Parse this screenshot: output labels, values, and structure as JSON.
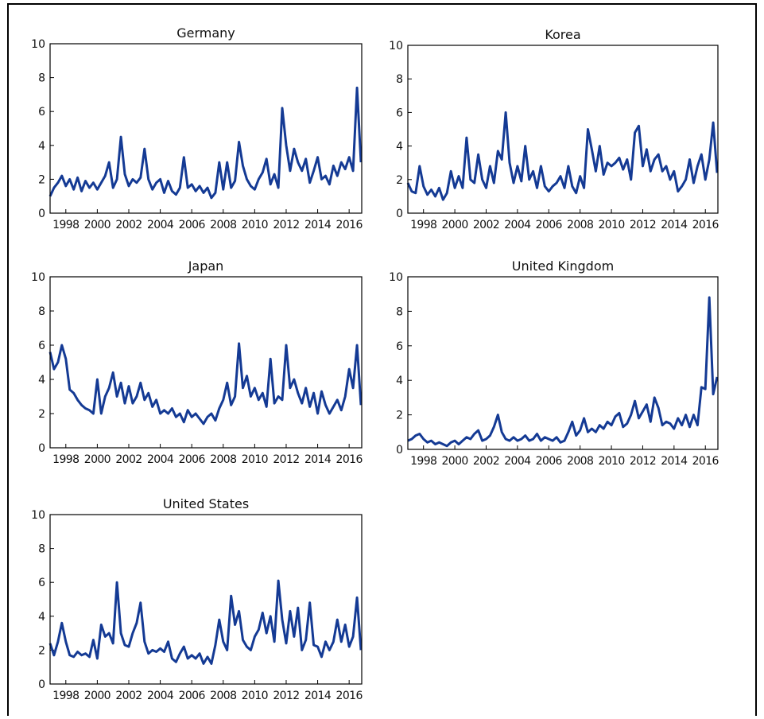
{
  "chart_data": [
    {
      "type": "line",
      "title": "Germany",
      "color": "#143a94",
      "xlim": [
        1997,
        2016.8
      ],
      "ylim": [
        0,
        10
      ],
      "xticks": [
        1998,
        2000,
        2002,
        2004,
        2006,
        2008,
        2010,
        2012,
        2014,
        2016
      ],
      "yticks": [
        0,
        2,
        4,
        6,
        8,
        10
      ],
      "x": [
        1997,
        1997.25,
        1997.5,
        1997.75,
        1998,
        1998.25,
        1998.5,
        1998.75,
        1999,
        1999.25,
        1999.5,
        1999.75,
        2000,
        2000.25,
        2000.5,
        2000.75,
        2001,
        2001.25,
        2001.5,
        2001.75,
        2002,
        2002.25,
        2002.5,
        2002.75,
        2003,
        2003.25,
        2003.5,
        2003.75,
        2004,
        2004.25,
        2004.5,
        2004.75,
        2005,
        2005.25,
        2005.5,
        2005.75,
        2006,
        2006.25,
        2006.5,
        2006.75,
        2007,
        2007.25,
        2007.5,
        2007.75,
        2008,
        2008.25,
        2008.5,
        2008.75,
        2009,
        2009.25,
        2009.5,
        2009.75,
        2010,
        2010.25,
        2010.5,
        2010.75,
        2011,
        2011.25,
        2011.5,
        2011.75,
        2012,
        2012.25,
        2012.5,
        2012.75,
        2013,
        2013.25,
        2013.5,
        2013.75,
        2014,
        2014.25,
        2014.5,
        2014.75,
        2015,
        2015.25,
        2015.5,
        2015.75,
        2016,
        2016.25,
        2016.5,
        2016.75
      ],
      "values": [
        1.0,
        1.5,
        1.8,
        2.2,
        1.6,
        2.0,
        1.4,
        2.1,
        1.3,
        1.9,
        1.5,
        1.8,
        1.4,
        1.8,
        2.2,
        3.0,
        1.5,
        2.0,
        4.5,
        2.3,
        1.6,
        2.0,
        1.8,
        2.1,
        3.8,
        2.0,
        1.4,
        1.8,
        2.0,
        1.2,
        1.9,
        1.3,
        1.1,
        1.5,
        3.3,
        1.5,
        1.7,
        1.3,
        1.6,
        1.2,
        1.5,
        0.9,
        1.2,
        3.0,
        1.4,
        3.0,
        1.5,
        1.9,
        4.2,
        2.8,
        2.0,
        1.6,
        1.4,
        2.0,
        2.4,
        3.2,
        1.7,
        2.3,
        1.5,
        6.2,
        4.0,
        2.5,
        3.8,
        3.0,
        2.5,
        3.2,
        1.8,
        2.5,
        3.3,
        2.0,
        2.2,
        1.7,
        2.8,
        2.2,
        3.0,
        2.6,
        3.3,
        2.5,
        7.4,
        3.0
      ]
    },
    {
      "type": "line",
      "title": "Korea",
      "color": "#143a94",
      "xlim": [
        1997,
        2016.8
      ],
      "ylim": [
        0,
        10
      ],
      "xticks": [
        1998,
        2000,
        2002,
        2004,
        2006,
        2008,
        2010,
        2012,
        2014,
        2016
      ],
      "yticks": [
        0,
        2,
        4,
        6,
        8,
        10
      ],
      "x": [
        1997,
        1997.25,
        1997.5,
        1997.75,
        1998,
        1998.25,
        1998.5,
        1998.75,
        1999,
        1999.25,
        1999.5,
        1999.75,
        2000,
        2000.25,
        2000.5,
        2000.75,
        2001,
        2001.25,
        2001.5,
        2001.75,
        2002,
        2002.25,
        2002.5,
        2002.75,
        2003,
        2003.25,
        2003.5,
        2003.75,
        2004,
        2004.25,
        2004.5,
        2004.75,
        2005,
        2005.25,
        2005.5,
        2005.75,
        2006,
        2006.25,
        2006.5,
        2006.75,
        2007,
        2007.25,
        2007.5,
        2007.75,
        2008,
        2008.25,
        2008.5,
        2008.75,
        2009,
        2009.25,
        2009.5,
        2009.75,
        2010,
        2010.25,
        2010.5,
        2010.75,
        2011,
        2011.25,
        2011.5,
        2011.75,
        2012,
        2012.25,
        2012.5,
        2012.75,
        2013,
        2013.25,
        2013.5,
        2013.75,
        2014,
        2014.25,
        2014.5,
        2014.75,
        2015,
        2015.25,
        2015.5,
        2015.75,
        2016,
        2016.25,
        2016.5,
        2016.75
      ],
      "values": [
        1.8,
        1.3,
        1.2,
        2.8,
        1.6,
        1.1,
        1.4,
        1.0,
        1.5,
        0.8,
        1.2,
        2.5,
        1.5,
        2.2,
        1.5,
        4.5,
        2.0,
        1.8,
        3.5,
        2.0,
        1.5,
        2.8,
        1.8,
        3.7,
        3.2,
        6.0,
        3.0,
        1.8,
        2.8,
        1.9,
        4.0,
        2.0,
        2.5,
        1.5,
        2.8,
        1.6,
        1.3,
        1.6,
        1.8,
        2.2,
        1.5,
        2.8,
        1.6,
        1.2,
        2.2,
        1.5,
        5.0,
        3.8,
        2.5,
        4.0,
        2.3,
        3.0,
        2.8,
        3.0,
        3.3,
        2.6,
        3.2,
        2.0,
        4.8,
        5.2,
        2.8,
        3.8,
        2.5,
        3.2,
        3.5,
        2.5,
        2.8,
        2.0,
        2.5,
        1.3,
        1.6,
        2.0,
        3.2,
        1.8,
        2.8,
        3.5,
        2.0,
        3.2,
        5.4,
        2.4
      ]
    },
    {
      "type": "line",
      "title": "Japan",
      "color": "#143a94",
      "xlim": [
        1997,
        2016.8
      ],
      "ylim": [
        0,
        10
      ],
      "xticks": [
        1998,
        2000,
        2002,
        2004,
        2006,
        2008,
        2010,
        2012,
        2014,
        2016
      ],
      "yticks": [
        0,
        2,
        4,
        6,
        8,
        10
      ],
      "x": [
        1997,
        1997.25,
        1997.5,
        1997.75,
        1998,
        1998.25,
        1998.5,
        1998.75,
        1999,
        1999.25,
        1999.5,
        1999.75,
        2000,
        2000.25,
        2000.5,
        2000.75,
        2001,
        2001.25,
        2001.5,
        2001.75,
        2002,
        2002.25,
        2002.5,
        2002.75,
        2003,
        2003.25,
        2003.5,
        2003.75,
        2004,
        2004.25,
        2004.5,
        2004.75,
        2005,
        2005.25,
        2005.5,
        2005.75,
        2006,
        2006.25,
        2006.5,
        2006.75,
        2007,
        2007.25,
        2007.5,
        2007.75,
        2008,
        2008.25,
        2008.5,
        2008.75,
        2009,
        2009.25,
        2009.5,
        2009.75,
        2010,
        2010.25,
        2010.5,
        2010.75,
        2011,
        2011.25,
        2011.5,
        2011.75,
        2012,
        2012.25,
        2012.5,
        2012.75,
        2013,
        2013.25,
        2013.5,
        2013.75,
        2014,
        2014.25,
        2014.5,
        2014.75,
        2015,
        2015.25,
        2015.5,
        2015.75,
        2016,
        2016.25,
        2016.5,
        2016.75
      ],
      "values": [
        5.6,
        4.6,
        5.0,
        6.0,
        5.2,
        3.4,
        3.2,
        2.8,
        2.5,
        2.3,
        2.2,
        2.0,
        4.0,
        2.0,
        3.0,
        3.5,
        4.4,
        3.0,
        3.8,
        2.6,
        3.6,
        2.6,
        3.0,
        3.8,
        2.8,
        3.2,
        2.4,
        2.8,
        2.0,
        2.2,
        2.0,
        2.3,
        1.8,
        2.0,
        1.5,
        2.2,
        1.8,
        2.0,
        1.7,
        1.4,
        1.8,
        2.0,
        1.6,
        2.3,
        2.8,
        3.8,
        2.5,
        3.0,
        6.1,
        3.5,
        4.2,
        3.0,
        3.5,
        2.8,
        3.2,
        2.4,
        5.2,
        2.6,
        3.0,
        2.8,
        6.0,
        3.5,
        4.0,
        3.2,
        2.6,
        3.5,
        2.4,
        3.2,
        2.0,
        3.3,
        2.5,
        2.0,
        2.4,
        2.8,
        2.2,
        3.0,
        4.6,
        3.5,
        6.0,
        2.5
      ]
    },
    {
      "type": "line",
      "title": "United Kingdom",
      "color": "#143a94",
      "xlim": [
        1997,
        2016.8
      ],
      "ylim": [
        0,
        10
      ],
      "xticks": [
        1998,
        2000,
        2002,
        2004,
        2006,
        2008,
        2010,
        2012,
        2014,
        2016
      ],
      "yticks": [
        0,
        2,
        4,
        6,
        8,
        10
      ],
      "x": [
        1997,
        1997.25,
        1997.5,
        1997.75,
        1998,
        1998.25,
        1998.5,
        1998.75,
        1999,
        1999.25,
        1999.5,
        1999.75,
        2000,
        2000.25,
        2000.5,
        2000.75,
        2001,
        2001.25,
        2001.5,
        2001.75,
        2002,
        2002.25,
        2002.5,
        2002.75,
        2003,
        2003.25,
        2003.5,
        2003.75,
        2004,
        2004.25,
        2004.5,
        2004.75,
        2005,
        2005.25,
        2005.5,
        2005.75,
        2006,
        2006.25,
        2006.5,
        2006.75,
        2007,
        2007.25,
        2007.5,
        2007.75,
        2008,
        2008.25,
        2008.5,
        2008.75,
        2009,
        2009.25,
        2009.5,
        2009.75,
        2010,
        2010.25,
        2010.5,
        2010.75,
        2011,
        2011.25,
        2011.5,
        2011.75,
        2012,
        2012.25,
        2012.5,
        2012.75,
        2013,
        2013.25,
        2013.5,
        2013.75,
        2014,
        2014.25,
        2014.5,
        2014.75,
        2015,
        2015.25,
        2015.5,
        2015.75,
        2016,
        2016.25,
        2016.5,
        2016.75
      ],
      "values": [
        0.5,
        0.6,
        0.8,
        0.9,
        0.6,
        0.4,
        0.5,
        0.3,
        0.4,
        0.3,
        0.2,
        0.4,
        0.5,
        0.3,
        0.5,
        0.7,
        0.6,
        0.9,
        1.1,
        0.5,
        0.6,
        0.8,
        1.3,
        2.0,
        1.0,
        0.6,
        0.5,
        0.7,
        0.5,
        0.6,
        0.8,
        0.5,
        0.6,
        0.9,
        0.5,
        0.7,
        0.6,
        0.5,
        0.7,
        0.4,
        0.5,
        1.0,
        1.6,
        0.8,
        1.1,
        1.8,
        1.0,
        1.2,
        1.0,
        1.4,
        1.2,
        1.6,
        1.4,
        1.9,
        2.1,
        1.3,
        1.5,
        2.0,
        2.8,
        1.8,
        2.2,
        2.6,
        1.6,
        3.0,
        2.4,
        1.4,
        1.6,
        1.5,
        1.2,
        1.8,
        1.4,
        2.0,
        1.3,
        2.0,
        1.4,
        3.6,
        3.5,
        8.8,
        3.2,
        4.2
      ]
    },
    {
      "type": "line",
      "title": "United States",
      "color": "#143a94",
      "xlim": [
        1997,
        2016.8
      ],
      "ylim": [
        0,
        10
      ],
      "xticks": [
        1998,
        2000,
        2002,
        2004,
        2006,
        2008,
        2010,
        2012,
        2014,
        2016
      ],
      "yticks": [
        0,
        2,
        4,
        6,
        8,
        10
      ],
      "x": [
        1997,
        1997.25,
        1997.5,
        1997.75,
        1998,
        1998.25,
        1998.5,
        1998.75,
        1999,
        1999.25,
        1999.5,
        1999.75,
        2000,
        2000.25,
        2000.5,
        2000.75,
        2001,
        2001.25,
        2001.5,
        2001.75,
        2002,
        2002.25,
        2002.5,
        2002.75,
        2003,
        2003.25,
        2003.5,
        2003.75,
        2004,
        2004.25,
        2004.5,
        2004.75,
        2005,
        2005.25,
        2005.5,
        2005.75,
        2006,
        2006.25,
        2006.5,
        2006.75,
        2007,
        2007.25,
        2007.5,
        2007.75,
        2008,
        2008.25,
        2008.5,
        2008.75,
        2009,
        2009.25,
        2009.5,
        2009.75,
        2010,
        2010.25,
        2010.5,
        2010.75,
        2011,
        2011.25,
        2011.5,
        2011.75,
        2012,
        2012.25,
        2012.5,
        2012.75,
        2013,
        2013.25,
        2013.5,
        2013.75,
        2014,
        2014.25,
        2014.5,
        2014.75,
        2015,
        2015.25,
        2015.5,
        2015.75,
        2016,
        2016.25,
        2016.5,
        2016.75
      ],
      "values": [
        2.4,
        1.7,
        2.5,
        3.6,
        2.5,
        1.7,
        1.6,
        1.9,
        1.7,
        1.8,
        1.6,
        2.6,
        1.5,
        3.5,
        2.8,
        3.0,
        2.4,
        6.0,
        3.0,
        2.3,
        2.2,
        3.0,
        3.6,
        4.8,
        2.5,
        1.8,
        2.0,
        1.9,
        2.1,
        1.9,
        2.5,
        1.5,
        1.3,
        1.8,
        2.2,
        1.5,
        1.7,
        1.5,
        1.8,
        1.2,
        1.6,
        1.2,
        2.3,
        3.8,
        2.5,
        2.0,
        5.2,
        3.5,
        4.3,
        2.6,
        2.2,
        2.0,
        2.8,
        3.2,
        4.2,
        3.0,
        4.0,
        2.5,
        6.1,
        3.8,
        2.4,
        4.3,
        2.8,
        4.5,
        2.0,
        2.6,
        4.8,
        2.3,
        2.2,
        1.6,
        2.5,
        2.0,
        2.5,
        3.8,
        2.5,
        3.5,
        2.2,
        2.8,
        5.1,
        2.0
      ]
    }
  ]
}
